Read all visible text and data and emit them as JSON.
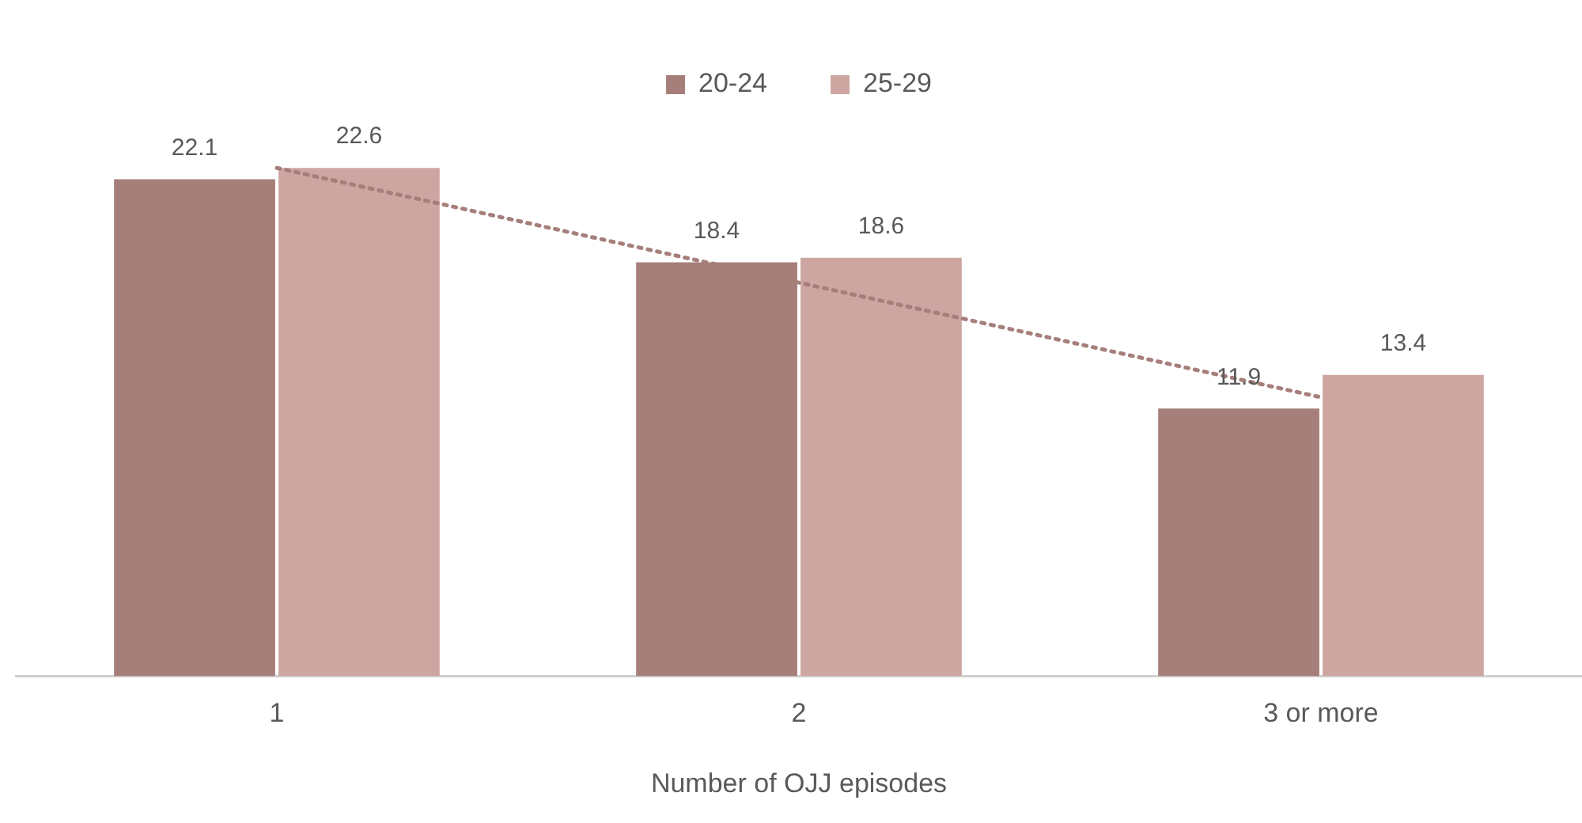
{
  "chart_data": {
    "type": "bar",
    "xlabel": "Number of OJJ episodes",
    "categories": [
      "1",
      "2",
      "3 or more"
    ],
    "series": [
      {
        "name": "20-24",
        "color": "#a67f7a",
        "values": [
          22.1,
          18.4,
          11.9
        ],
        "value_labels": [
          "22.1",
          "18.4",
          "11.9"
        ]
      },
      {
        "name": "25-29",
        "color": "#cda6a2",
        "values": [
          22.6,
          18.6,
          13.4
        ],
        "value_labels": [
          "22.6",
          "18.6",
          "13.4"
        ]
      },
      {
        "type": "line",
        "color": "#a67f7a",
        "values": [
          22.6,
          17.5,
          12.4
        ],
        "line_style": "dotted",
        "marker": "none"
      }
    ],
    "tick_labels": "x",
    "grid": false,
    "legend": "top"
  }
}
